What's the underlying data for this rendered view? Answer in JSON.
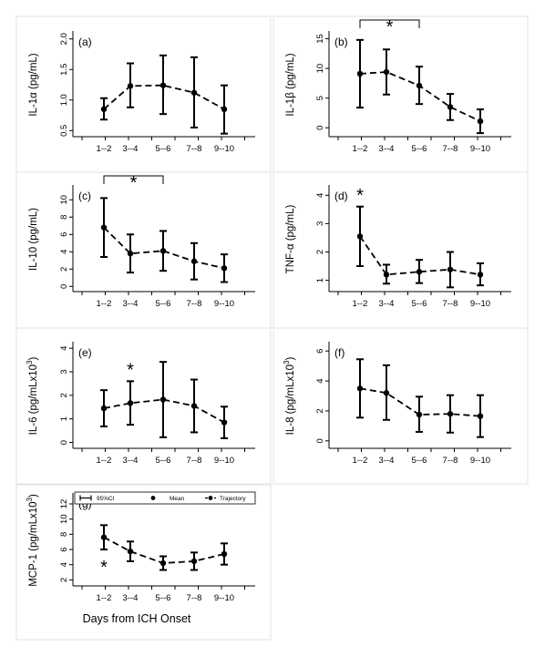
{
  "chart_data": [
    {
      "type": "line",
      "panel_label": "(a)",
      "ylabel": "IL-1α (pg/mL)",
      "ylabel_sup": "",
      "categories": [
        "1--2",
        "3--4",
        "5--6",
        "7--8",
        "9--10"
      ],
      "mean": [
        0.85,
        1.23,
        1.24,
        1.12,
        0.85
      ],
      "ci_low": [
        0.68,
        0.88,
        0.77,
        0.55,
        0.45
      ],
      "ci_high": [
        1.03,
        1.6,
        1.73,
        1.7,
        1.24
      ],
      "ylim": [
        0.4,
        2.1
      ],
      "yticks": [
        0.5,
        1.0,
        1.5,
        2.0
      ],
      "ytick_labels": [
        "0.5",
        "1.0",
        "1.5",
        "2.0"
      ],
      "significance": null
    },
    {
      "type": "line",
      "panel_label": "(b)",
      "ylabel": "IL-1β (pg/mL)",
      "ylabel_sup": "",
      "categories": [
        "1--2",
        "3--4",
        "5--6",
        "7--8",
        "9--10"
      ],
      "mean": [
        9.1,
        9.4,
        7.1,
        3.5,
        1.1
      ],
      "ci_low": [
        3.4,
        5.6,
        4.0,
        1.3,
        -0.9
      ],
      "ci_high": [
        14.8,
        13.2,
        10.3,
        5.7,
        3.1
      ],
      "ylim": [
        -1.5,
        16
      ],
      "yticks": [
        0,
        5,
        10,
        15
      ],
      "ytick_labels": [
        "0",
        "5",
        "10",
        "15"
      ],
      "significance": {
        "symbol": "*",
        "type": "bracket",
        "from": 0,
        "to": 2
      }
    },
    {
      "type": "line",
      "panel_label": "(c)",
      "ylabel": "IL-10 (pg/mL)",
      "ylabel_sup": "",
      "categories": [
        "1--2",
        "3--4",
        "5--6",
        "7--8",
        "9--10"
      ],
      "mean": [
        6.8,
        3.8,
        4.1,
        2.9,
        2.1
      ],
      "ci_low": [
        3.4,
        1.6,
        1.8,
        0.8,
        0.5
      ],
      "ci_high": [
        10.2,
        6.0,
        6.4,
        5.0,
        3.7
      ],
      "ylim": [
        -0.6,
        11.5
      ],
      "yticks": [
        0,
        2,
        4,
        6,
        8,
        10
      ],
      "ytick_labels": [
        "0",
        "2",
        "4",
        "6",
        "8",
        "10"
      ],
      "significance": {
        "symbol": "*",
        "type": "bracket",
        "from": 0,
        "to": 2
      }
    },
    {
      "type": "line",
      "panel_label": "(d)",
      "ylabel": "TNF-α (pg/mL)",
      "ylabel_sup": "",
      "categories": [
        "1--2",
        "3--4",
        "5--6",
        "7--8",
        "9--10"
      ],
      "mean": [
        2.55,
        1.2,
        1.3,
        1.38,
        1.2
      ],
      "ci_low": [
        1.5,
        0.88,
        0.9,
        0.75,
        0.82
      ],
      "ci_high": [
        3.6,
        1.55,
        1.72,
        2.0,
        1.6
      ],
      "ylim": [
        0.6,
        4.3
      ],
      "yticks": [
        1,
        2,
        3,
        4
      ],
      "ytick_labels": [
        "1",
        "2",
        "3",
        "4"
      ],
      "significance": {
        "symbol": "*",
        "type": "point",
        "at": 0
      }
    },
    {
      "type": "line",
      "panel_label": "(e)",
      "ylabel": "IL-6 (pg/mLx10",
      "ylabel_sup": "3",
      "categories": [
        "1--2",
        "3--4",
        "5--6",
        "7--8",
        "9--10"
      ],
      "mean": [
        1.45,
        1.67,
        1.82,
        1.55,
        0.85
      ],
      "ci_low": [
        0.68,
        0.75,
        0.22,
        0.43,
        0.18
      ],
      "ci_high": [
        2.22,
        2.6,
        3.42,
        2.67,
        1.52
      ],
      "ylim": [
        -0.25,
        4.2
      ],
      "yticks": [
        0,
        1,
        2,
        3,
        4
      ],
      "ytick_labels": [
        "0",
        "1",
        "2",
        "3",
        "4"
      ],
      "significance": {
        "symbol": "*",
        "type": "point",
        "at": 1
      }
    },
    {
      "type": "line",
      "panel_label": "(f)",
      "ylabel": "IL-8 (pg/mLx10",
      "ylabel_sup": "3",
      "categories": [
        "1--2",
        "3--4",
        "5--6",
        "7--8",
        "9--10"
      ],
      "mean": [
        3.5,
        3.2,
        1.75,
        1.8,
        1.65
      ],
      "ci_low": [
        1.55,
        1.4,
        0.6,
        0.55,
        0.25
      ],
      "ci_high": [
        5.45,
        5.05,
        2.95,
        3.05,
        3.05
      ],
      "ylim": [
        -0.5,
        6.5
      ],
      "yticks": [
        0,
        2,
        4,
        6
      ],
      "ytick_labels": [
        "0",
        "2",
        "4",
        "6"
      ],
      "significance": null
    },
    {
      "type": "line",
      "panel_label": "(g)",
      "ylabel": "MCP-1 (pg/mLx10",
      "ylabel_sup": "3",
      "categories": [
        "1--2",
        "3--4",
        "5--6",
        "7--8",
        "9--10"
      ],
      "mean": [
        7.6,
        5.75,
        4.2,
        4.45,
        5.4
      ],
      "ci_low": [
        6.0,
        4.45,
        3.3,
        3.3,
        4.0
      ],
      "ci_high": [
        9.2,
        7.05,
        5.1,
        5.6,
        6.8
      ],
      "ylim": [
        1.2,
        13.2
      ],
      "yticks": [
        2,
        4,
        6,
        8,
        10,
        12
      ],
      "ytick_labels": [
        "2",
        "4",
        "6",
        "8",
        "10",
        "12"
      ],
      "significance": {
        "symbol": "*",
        "type": "point_below",
        "at": 0
      },
      "legend": [
        "95%CI",
        "Mean",
        "Trajectory"
      ]
    }
  ],
  "xlabel": "Days from ICH Onset"
}
